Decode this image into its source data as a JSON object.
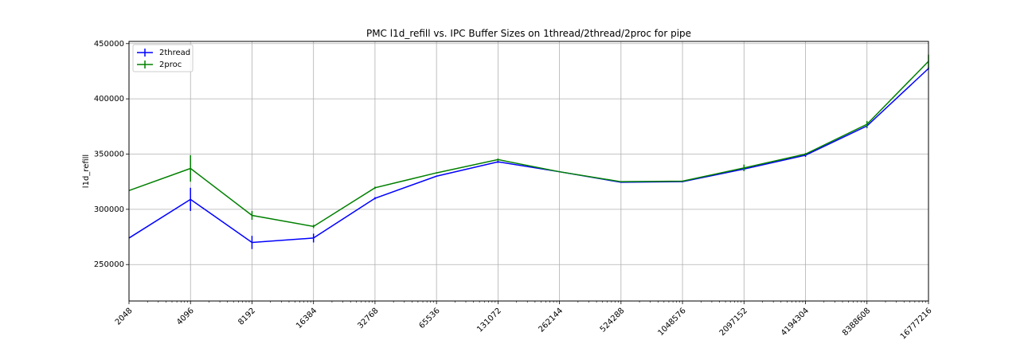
{
  "chart_data": {
    "type": "line",
    "title": "PMC l1d_refill vs. IPC Buffer Sizes on 1thread/2thread/2proc for pipe",
    "xlabel": "",
    "ylabel": "l1d_refill",
    "xscale": "log2",
    "x": [
      2048,
      4096,
      8192,
      16384,
      32768,
      65536,
      131072,
      262144,
      524288,
      1048576,
      2097152,
      4194304,
      8388608,
      16777216
    ],
    "xtick_labels": [
      "2048",
      "4096",
      "8192",
      "16384",
      "32768",
      "65536",
      "131072",
      "262144",
      "524288",
      "1048576",
      "2097152",
      "4194304",
      "8388608",
      "16777216"
    ],
    "yticks": [
      250000,
      300000,
      350000,
      400000,
      450000
    ],
    "ytick_labels": [
      "250000",
      "300000",
      "350000",
      "400000",
      "450000"
    ],
    "xlim": [
      2048,
      16777216
    ],
    "ylim": [
      217000,
      452000
    ],
    "grid": true,
    "legend_position": "top-left",
    "series": [
      {
        "name": "2thread",
        "color": "#0000ff",
        "values": [
          274000,
          309000,
          270000,
          274000,
          310000,
          330000,
          343000,
          334000,
          324500,
          325000,
          336500,
          349000,
          375500,
          427500
        ],
        "errors": [
          0,
          10500,
          6000,
          4000,
          1000,
          500,
          1000,
          500,
          500,
          500,
          2000,
          1500,
          2000,
          1000
        ]
      },
      {
        "name": "2proc",
        "color": "#008000",
        "values": [
          317000,
          337000,
          294500,
          284500,
          319500,
          333000,
          345000,
          334000,
          325000,
          325500,
          337500,
          350000,
          377000,
          434000
        ],
        "errors": [
          0,
          12000,
          4000,
          1500,
          1000,
          500,
          1000,
          500,
          500,
          500,
          3000,
          1000,
          3000,
          6000
        ]
      }
    ]
  }
}
